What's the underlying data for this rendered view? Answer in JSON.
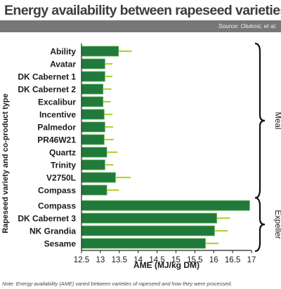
{
  "title": "Energy availability between rapeseed varieties",
  "source": "Source: Olukosi, et al.",
  "note": "Note: Energy availability (AME) varied between varieties of rapeseed and how they were processed.",
  "colors": {
    "bar": "#1f7a3b",
    "bar_edge": "#5aa550",
    "error_bar": "#b4d335",
    "header_bar": "#777777",
    "axis": "#222222"
  },
  "chart_data": {
    "type": "bar",
    "orientation": "horizontal",
    "title": "Energy availability between rapeseed varieties",
    "xlabel": "AME (MJ/kg DM)",
    "ylabel": "Rapeseed variety and co-product type",
    "xlim": [
      12.5,
      17
    ],
    "xticks": [
      "12.5",
      "13",
      "13.5",
      "14",
      "14.5",
      "15",
      "15.5",
      "16",
      "16.5",
      "17"
    ],
    "grid": false,
    "categories": [
      "Ability",
      "Avatar",
      "DK Cabernet 1",
      "DK Cabernet 2",
      "Excalibur",
      "Incentive",
      "Palmedor",
      "PR46W21",
      "Quartz",
      "Trinity",
      "V2750L",
      "Compass",
      "Compass",
      "DK Cabernet 3",
      "NK Grandia",
      "Sesame"
    ],
    "values": [
      13.48,
      13.12,
      13.12,
      13.07,
      13.07,
      13.1,
      13.12,
      13.1,
      13.17,
      13.12,
      13.4,
      13.17,
      16.95,
      16.08,
      16.02,
      15.78
    ],
    "errors": [
      0.35,
      0.2,
      0.2,
      0.22,
      0.2,
      0.22,
      0.22,
      0.25,
      0.28,
      0.22,
      0.4,
      0.32,
      0.0,
      0.35,
      0.35,
      0.35
    ],
    "groups": [
      {
        "name": "Meal",
        "from_index": 0,
        "to_index": 11
      },
      {
        "name": "Expeller",
        "from_index": 12,
        "to_index": 15
      }
    ]
  }
}
